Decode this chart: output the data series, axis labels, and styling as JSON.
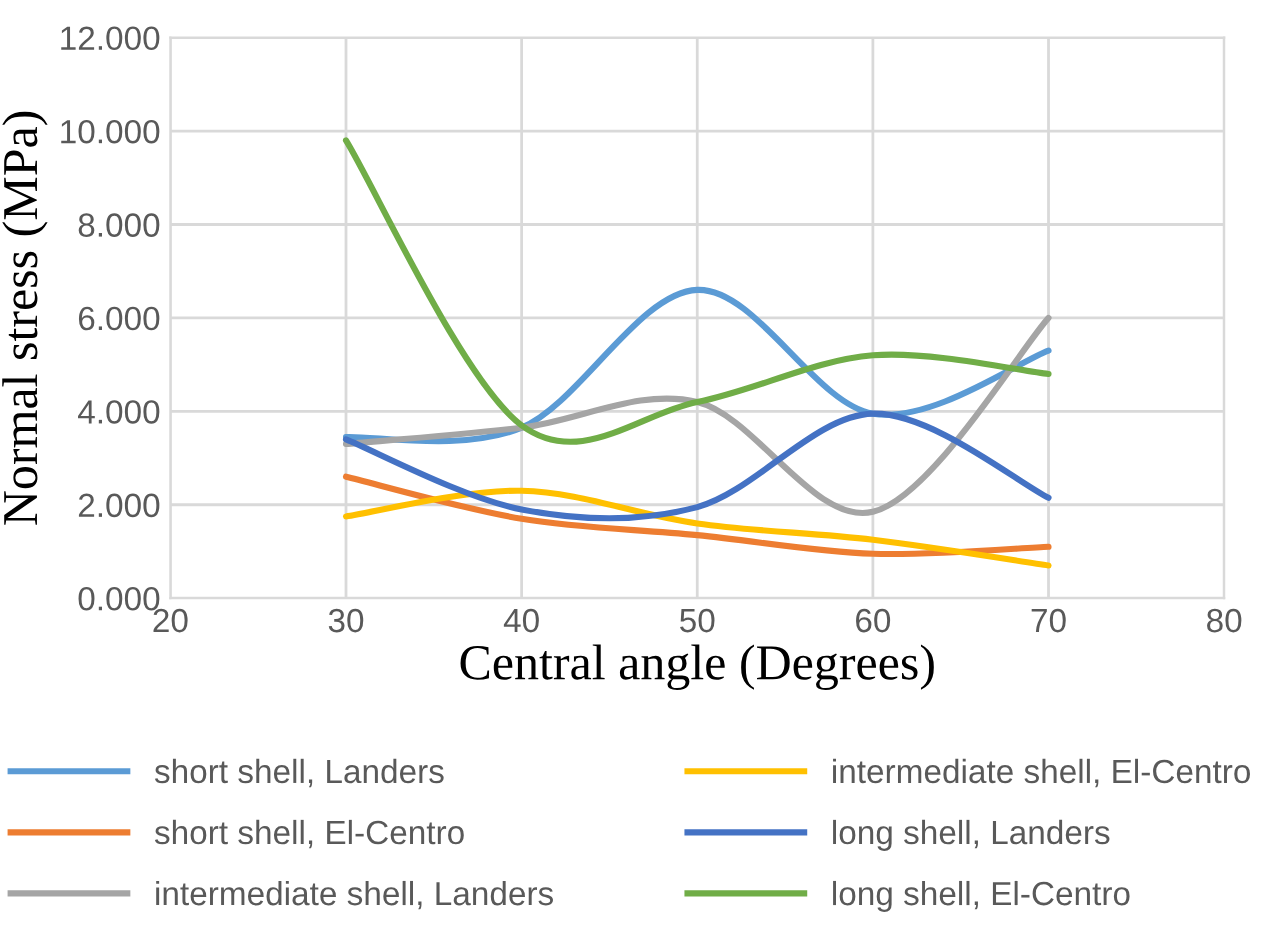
{
  "chart_data": {
    "type": "line",
    "xlabel": "Central angle (Degrees)",
    "ylabel": "Normal stress (MPa)",
    "x": [
      30,
      40,
      50,
      60,
      70
    ],
    "series": [
      {
        "name": "short shell, Landers",
        "color": "#5b9bd5",
        "values": [
          3.45,
          3.65,
          6.6,
          3.95,
          5.3
        ]
      },
      {
        "name": "short shell, El-Centro",
        "color": "#ed7d31",
        "values": [
          2.6,
          1.7,
          1.35,
          0.95,
          1.1
        ]
      },
      {
        "name": "intermediate shell, Landers",
        "color": "#a5a5a5",
        "values": [
          3.3,
          3.65,
          4.2,
          1.85,
          6.0
        ]
      },
      {
        "name": "intermediate shell, El-Centro",
        "color": "#ffc000",
        "values": [
          1.75,
          2.3,
          1.6,
          1.25,
          0.7
        ]
      },
      {
        "name": "long shell, Landers",
        "color": "#4472c4",
        "values": [
          3.4,
          1.9,
          1.95,
          3.95,
          2.15
        ]
      },
      {
        "name": "long shell, El-Centro",
        "color": "#70ad47",
        "values": [
          9.8,
          3.7,
          4.2,
          5.2,
          4.8
        ]
      }
    ],
    "xlim": [
      20,
      80
    ],
    "xticks": [
      20,
      30,
      40,
      50,
      60,
      70,
      80
    ],
    "ylim": [
      0,
      12
    ],
    "yticks": [
      {
        "value": 0,
        "label": "0.000"
      },
      {
        "value": 2,
        "label": "2.000"
      },
      {
        "value": 4,
        "label": "4.000"
      },
      {
        "value": 6,
        "label": "6.000"
      },
      {
        "value": 8,
        "label": "8.000"
      },
      {
        "value": 10,
        "label": "10.000"
      },
      {
        "value": 12,
        "label": "12.000"
      }
    ],
    "grid": true,
    "legend": "bottom",
    "marker": "none",
    "line_style": "solid"
  }
}
